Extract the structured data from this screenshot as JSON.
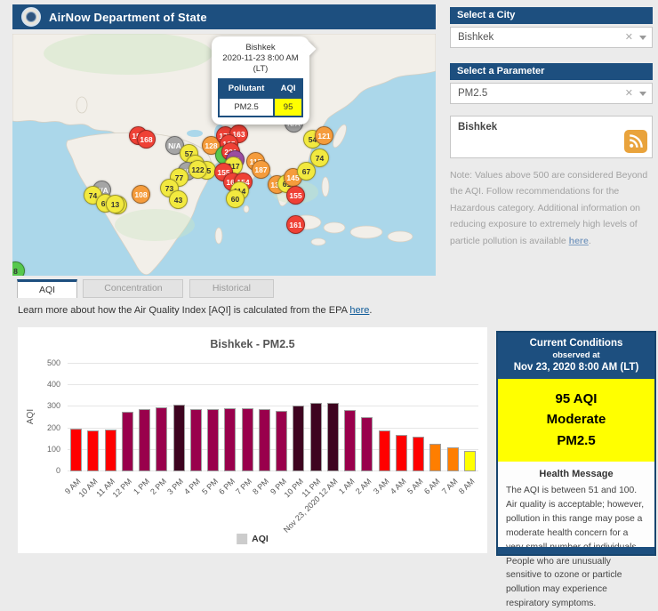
{
  "header": {
    "title": "AirNow Department of State"
  },
  "map": {
    "popup": {
      "city": "Bishkek",
      "datetime": "2020-11-23 8:00 AM",
      "tz": "(LT)",
      "col_pollutant": "Pollutant",
      "col_aqi": "AQI",
      "pollutant": "PM2.5",
      "aqi": "95"
    },
    "markers": [
      {
        "x": 118,
        "y": 192,
        "c": "yellow",
        "v": "70"
      },
      {
        "x": 141,
        "y": 114,
        "c": "red",
        "v": "152"
      },
      {
        "x": 150,
        "y": 118,
        "c": "red",
        "v": "168"
      },
      {
        "x": 182,
        "y": 125,
        "c": "gray",
        "v": "N/A"
      },
      {
        "x": 198,
        "y": 134,
        "c": "yellow",
        "v": "57"
      },
      {
        "x": 205,
        "y": 146,
        "c": "yellow",
        "v": "78"
      },
      {
        "x": 196,
        "y": 154,
        "c": "gray",
        "v": "N/A"
      },
      {
        "x": 218,
        "y": 153,
        "c": "yellow",
        "v": "75"
      },
      {
        "x": 208,
        "y": 152,
        "c": "yellow",
        "v": "122"
      },
      {
        "x": 187,
        "y": 161,
        "c": "yellow",
        "v": "77"
      },
      {
        "x": 176,
        "y": 173,
        "c": "yellow",
        "v": "73"
      },
      {
        "x": 223,
        "y": 125,
        "c": "orange",
        "v": "128"
      },
      {
        "x": 144,
        "y": 180,
        "c": "orange",
        "v": "108"
      },
      {
        "x": 100,
        "y": 175,
        "c": "gray",
        "v": "N/A"
      },
      {
        "x": 90,
        "y": 181,
        "c": "yellow",
        "v": "74"
      },
      {
        "x": 104,
        "y": 190,
        "c": "yellow",
        "v": "69"
      },
      {
        "x": 115,
        "y": 191,
        "c": "yellow",
        "v": "13"
      },
      {
        "x": 186,
        "y": 186,
        "c": "yellow",
        "v": "43"
      },
      {
        "x": 239,
        "y": 114,
        "c": "red",
        "v": "171"
      },
      {
        "x": 254,
        "y": 112,
        "c": "red",
        "v": "163"
      },
      {
        "x": 243,
        "y": 123,
        "c": "red",
        "v": "165"
      },
      {
        "x": 238,
        "y": 136,
        "c": "green",
        "v": ""
      },
      {
        "x": 245,
        "y": 132,
        "c": "red",
        "v": "221"
      },
      {
        "x": 250,
        "y": 141,
        "c": "purple",
        "v": "43"
      },
      {
        "x": 248,
        "y": 148,
        "c": "yellow",
        "v": "217"
      },
      {
        "x": 237,
        "y": 155,
        "c": "red",
        "v": "155"
      },
      {
        "x": 247,
        "y": 166,
        "c": "red",
        "v": "168"
      },
      {
        "x": 259,
        "y": 166,
        "c": "red",
        "v": "154"
      },
      {
        "x": 255,
        "y": 176,
        "c": "yellow",
        "v": "114"
      },
      {
        "x": 250,
        "y": 185,
        "c": "yellow",
        "v": "60"
      },
      {
        "x": 273,
        "y": 143,
        "c": "orange",
        "v": "115"
      },
      {
        "x": 279,
        "y": 152,
        "c": "orange",
        "v": "187"
      },
      {
        "x": 297,
        "y": 169,
        "c": "orange",
        "v": "137"
      },
      {
        "x": 308,
        "y": 168,
        "c": "yellow",
        "v": "61"
      },
      {
        "x": 315,
        "y": 161,
        "c": "orange",
        "v": "145"
      },
      {
        "x": 330,
        "y": 154,
        "c": "yellow",
        "v": "67"
      },
      {
        "x": 318,
        "y": 181,
        "c": "red",
        "v": "155"
      },
      {
        "x": 318,
        "y": 214,
        "c": "red",
        "v": "161"
      },
      {
        "x": 337,
        "y": 118,
        "c": "yellow",
        "v": "54"
      },
      {
        "x": 350,
        "y": 114,
        "c": "orange",
        "v": "121"
      },
      {
        "x": 345,
        "y": 139,
        "c": "yellow",
        "v": "74"
      },
      {
        "x": 316,
        "y": 100,
        "c": "gray",
        "v": "N/A"
      },
      {
        "x": 3,
        "y": 266,
        "c": "green",
        "v": "8"
      }
    ]
  },
  "sidebar": {
    "city_header": "Select a City",
    "city_value": "Bishkek",
    "parameter_header": "Select a Parameter",
    "parameter_value": "PM2.5",
    "feed_text": "Bishkek",
    "note_text": "Note: Values above 500 are considered Beyond the AQI. Follow recommendations for the Hazardous category. Additional information on reducing exposure to extremely high levels of particle pollution is available ",
    "note_link": "here",
    "note_suffix": "."
  },
  "tabs": [
    {
      "label": "AQI"
    },
    {
      "label": "Concentration"
    },
    {
      "label": "Historical"
    }
  ],
  "learn_more": {
    "prefix": "Learn more about how the Air Quality Index [AQI] is calculated from the EPA ",
    "link": "here",
    "suffix": "."
  },
  "chart_data": {
    "type": "bar",
    "title": "Bishkek - PM2.5",
    "ylabel": "AQI",
    "ylim": [
      0,
      500
    ],
    "yticks": [
      0,
      100,
      200,
      300,
      400,
      500
    ],
    "grid": true,
    "legend": {
      "position": "bottom",
      "label": "AQI",
      "swatch_color": "#cccccc"
    },
    "categories": [
      "9 AM",
      "10 AM",
      "11 AM",
      "12 PM",
      "1 PM",
      "2 PM",
      "3 PM",
      "4 PM",
      "5 PM",
      "6 PM",
      "7 PM",
      "8 PM",
      "9 PM",
      "10 PM",
      "11 PM",
      "Nov 23, 2020 12 AM",
      "1 AM",
      "2 AM",
      "3 AM",
      "4 AM",
      "5 AM",
      "6 AM",
      "7 AM",
      "8 AM"
    ],
    "values": [
      197,
      192,
      193,
      275,
      290,
      296,
      308,
      290,
      289,
      293,
      294,
      288,
      283,
      305,
      317,
      320,
      284,
      254,
      189,
      170,
      160,
      130,
      110,
      95
    ],
    "color_scale": [
      {
        "max": 50,
        "color": "#00e400"
      },
      {
        "max": 100,
        "color": "#ffff00"
      },
      {
        "max": 150,
        "color": "#ff7e00"
      },
      {
        "max": 200,
        "color": "#ff0000"
      },
      {
        "max": 300,
        "color": "#99004c"
      },
      {
        "max": 500,
        "color": "#3e0420"
      }
    ]
  },
  "current_conditions": {
    "title": "Current Conditions",
    "observed": "observed at",
    "datetime": "Nov 23, 2020 8:00 AM (LT)",
    "aqi_value": "95 AQI",
    "aqi_category": "Moderate",
    "aqi_pollutant": "PM2.5",
    "health_title": "Health Message",
    "health_text": "The AQI is between 51 and 100. Air quality is acceptable; however, pollution in this range may pose a moderate health concern for a very small number of individuals. People who are unusually sensitive to ozone or particle pollution may experience respiratory symptoms."
  },
  "colors": {
    "header_blue": "#1d4f7f",
    "accent_yellow": "#ffff00",
    "link_blue": "#0f5b99",
    "marker_palette": {
      "green": "#57c84d",
      "yellow": "#f2e93f",
      "orange": "#f59c3c",
      "red": "#ef4136",
      "purple": "#9b4ea0",
      "gray": "#a5a5a5"
    }
  }
}
